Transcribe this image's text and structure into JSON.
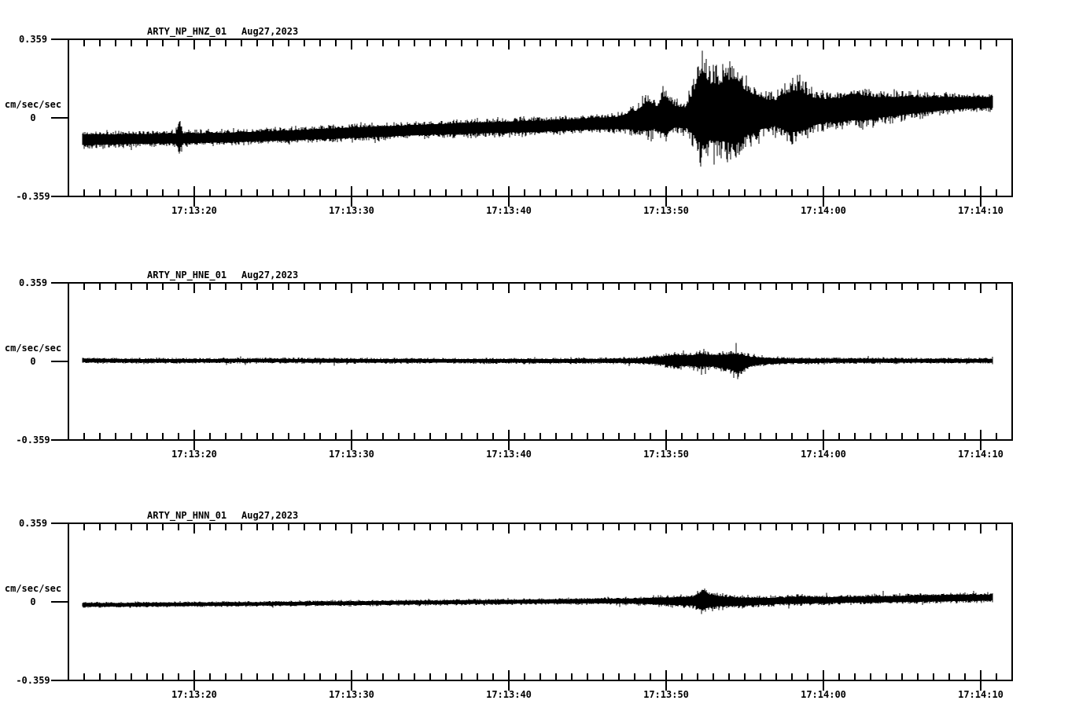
{
  "page": {
    "kind": "seismogram-strip-chart",
    "background_color": "#ffffff",
    "trace_color": "#000000"
  },
  "chart_data": [
    {
      "type": "line",
      "variant": "seismogram-waveform",
      "title": "ARTY_NP_HNZ_01",
      "date_label": "Aug27,2023",
      "ylabel": "cm/sec/sec",
      "ytick_labels": [
        "0.359",
        "0",
        "-0.359"
      ],
      "ytick_values": [
        0.359,
        0,
        -0.359
      ],
      "ylim": [
        -0.359,
        0.359
      ],
      "xtick_labels": [
        "17:13:20",
        "17:13:30",
        "17:13:40",
        "17:13:50",
        "17:14:00",
        "17:14:10"
      ],
      "xticks_seconds": [
        8,
        18,
        28,
        38,
        48,
        58
      ],
      "xlim_seconds": [
        0,
        60
      ],
      "minor_tick_interval_seconds": 1,
      "grid": false,
      "legend": false,
      "envelope_format": [
        "t_seconds_from_left_edge",
        "center_cm_s2",
        "half_amplitude_cm_s2"
      ],
      "envelope": [
        [
          0.9,
          -0.1,
          0.048
        ],
        [
          4,
          -0.097,
          0.043
        ],
        [
          6.8,
          -0.094,
          0.044
        ],
        [
          7.05,
          -0.085,
          0.115
        ],
        [
          7.3,
          -0.093,
          0.044
        ],
        [
          10,
          -0.09,
          0.042
        ],
        [
          14,
          -0.08,
          0.044
        ],
        [
          18,
          -0.068,
          0.046
        ],
        [
          22,
          -0.056,
          0.046
        ],
        [
          26,
          -0.046,
          0.048
        ],
        [
          30,
          -0.038,
          0.05
        ],
        [
          33,
          -0.028,
          0.05
        ],
        [
          35,
          -0.022,
          0.054
        ],
        [
          36.2,
          -0.01,
          0.09
        ],
        [
          36.9,
          0.01,
          0.135
        ],
        [
          37.4,
          0.0,
          0.095
        ],
        [
          37.9,
          0.015,
          0.175
        ],
        [
          38.5,
          0.005,
          0.1
        ],
        [
          39.3,
          0.0,
          0.09
        ],
        [
          39.95,
          0.03,
          0.25
        ],
        [
          40.3,
          0.04,
          0.335
        ],
        [
          40.8,
          0.025,
          0.255
        ],
        [
          41.6,
          0.02,
          0.25
        ],
        [
          42.4,
          0.025,
          0.29
        ],
        [
          43.1,
          0.02,
          0.2
        ],
        [
          44,
          0.018,
          0.14
        ],
        [
          44.9,
          0.02,
          0.115
        ],
        [
          45.7,
          0.028,
          0.17
        ],
        [
          46.5,
          0.03,
          0.185
        ],
        [
          47.3,
          0.028,
          0.13
        ],
        [
          48.1,
          0.032,
          0.1
        ],
        [
          49,
          0.035,
          0.11
        ],
        [
          49.8,
          0.05,
          0.12
        ],
        [
          50.7,
          0.045,
          0.11
        ],
        [
          51.6,
          0.048,
          0.09
        ],
        [
          53,
          0.055,
          0.08
        ],
        [
          54.5,
          0.06,
          0.068
        ],
        [
          56,
          0.066,
          0.055
        ],
        [
          57.5,
          0.07,
          0.05
        ],
        [
          58.75,
          0.07,
          0.048
        ]
      ]
    },
    {
      "type": "line",
      "variant": "seismogram-waveform",
      "title": "ARTY_NP_HNE_01",
      "date_label": "Aug27,2023",
      "ylabel": "cm/sec/sec",
      "ytick_labels": [
        "0.359",
        "0",
        "-0.359"
      ],
      "ytick_values": [
        0.359,
        0,
        -0.359
      ],
      "ylim": [
        -0.359,
        0.359
      ],
      "xtick_labels": [
        "17:13:20",
        "17:13:30",
        "17:13:40",
        "17:13:50",
        "17:14:00",
        "17:14:10"
      ],
      "xticks_seconds": [
        8,
        18,
        28,
        38,
        48,
        58
      ],
      "xlim_seconds": [
        0,
        60
      ],
      "minor_tick_interval_seconds": 1,
      "grid": false,
      "legend": false,
      "envelope_format": [
        "t_seconds_from_left_edge",
        "center_cm_s2",
        "half_amplitude_cm_s2"
      ],
      "envelope": [
        [
          0.9,
          0.004,
          0.016
        ],
        [
          6,
          0.003,
          0.015
        ],
        [
          12,
          0.004,
          0.015
        ],
        [
          18,
          0.003,
          0.016
        ],
        [
          24,
          0.003,
          0.015
        ],
        [
          30,
          0.002,
          0.016
        ],
        [
          34,
          0.003,
          0.017
        ],
        [
          36.5,
          0.003,
          0.02
        ],
        [
          37.8,
          0.004,
          0.034
        ],
        [
          38.6,
          0.005,
          0.05
        ],
        [
          39.4,
          0.003,
          0.044
        ],
        [
          40.2,
          0.005,
          0.057
        ],
        [
          41,
          0.003,
          0.05
        ],
        [
          41.8,
          0.0,
          0.06
        ],
        [
          42.5,
          -0.006,
          0.08
        ],
        [
          43.1,
          -0.002,
          0.05
        ],
        [
          43.8,
          0.001,
          0.032
        ],
        [
          44.8,
          0.002,
          0.024
        ],
        [
          46,
          0.003,
          0.019
        ],
        [
          48,
          0.003,
          0.018
        ],
        [
          51,
          0.004,
          0.017
        ],
        [
          54,
          0.003,
          0.016
        ],
        [
          58.75,
          0.003,
          0.016
        ]
      ]
    },
    {
      "type": "line",
      "variant": "seismogram-waveform",
      "title": "ARTY_NP_HNN_01",
      "date_label": "Aug27,2023",
      "ylabel": "cm/sec/sec",
      "ytick_labels": [
        "0.359",
        "0",
        "-0.359"
      ],
      "ytick_values": [
        0.359,
        0,
        -0.359
      ],
      "ylim": [
        -0.359,
        0.359
      ],
      "xtick_labels": [
        "17:13:20",
        "17:13:30",
        "17:13:40",
        "17:13:50",
        "17:14:00",
        "17:14:10"
      ],
      "xticks_seconds": [
        8,
        18,
        28,
        38,
        48,
        58
      ],
      "xlim_seconds": [
        0,
        60
      ],
      "minor_tick_interval_seconds": 1,
      "grid": false,
      "legend": false,
      "envelope_format": [
        "t_seconds_from_left_edge",
        "center_cm_s2",
        "half_amplitude_cm_s2"
      ],
      "envelope": [
        [
          0.9,
          -0.014,
          0.015
        ],
        [
          6,
          -0.012,
          0.015
        ],
        [
          12,
          -0.009,
          0.015
        ],
        [
          18,
          -0.006,
          0.016
        ],
        [
          24,
          -0.002,
          0.016
        ],
        [
          29,
          0.001,
          0.017
        ],
        [
          33,
          0.003,
          0.018
        ],
        [
          36,
          0.004,
          0.022
        ],
        [
          37.5,
          0.004,
          0.03
        ],
        [
          38.7,
          0.003,
          0.034
        ],
        [
          39.8,
          0.004,
          0.04
        ],
        [
          40.4,
          0.006,
          0.078
        ],
        [
          40.9,
          0.004,
          0.05
        ],
        [
          41.8,
          0.002,
          0.04
        ],
        [
          42.8,
          0.0,
          0.036
        ],
        [
          43.8,
          0.002,
          0.032
        ],
        [
          45,
          0.005,
          0.027
        ],
        [
          46.6,
          0.008,
          0.032
        ],
        [
          48,
          0.008,
          0.026
        ],
        [
          50,
          0.01,
          0.026
        ],
        [
          52,
          0.012,
          0.026
        ],
        [
          54,
          0.015,
          0.028
        ],
        [
          56.5,
          0.018,
          0.028
        ],
        [
          58.75,
          0.02,
          0.026
        ]
      ]
    }
  ]
}
